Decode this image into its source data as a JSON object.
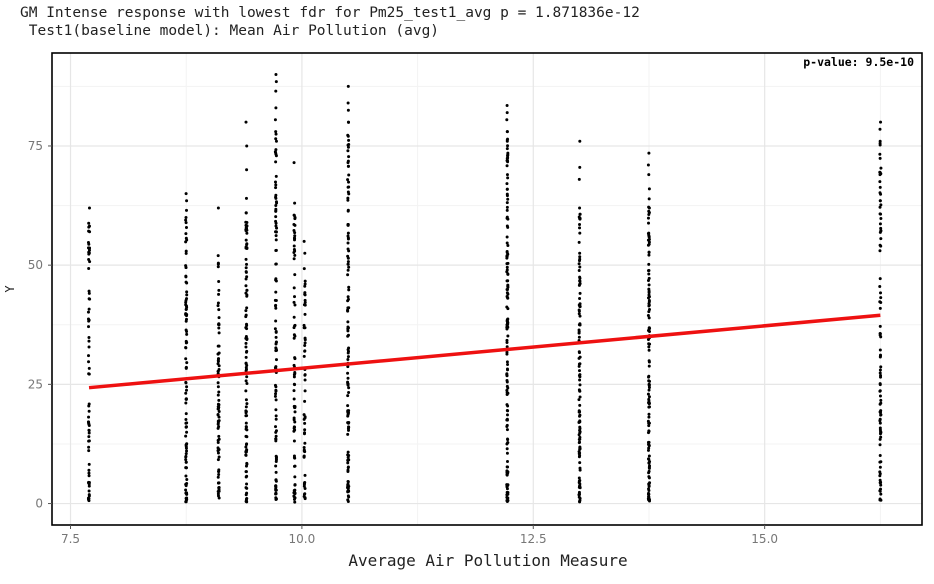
{
  "chart_data": {
    "type": "scatter",
    "title": "GM Intense response with lowest fdr for Pm25_test1_avg p = 1.871836e-12",
    "subtitle": " Test1(baseline model): Mean Air Pollution (avg)",
    "xlabel": "Average Air Pollution Measure",
    "ylabel": "Y",
    "xlim": [
      7.3,
      16.7
    ],
    "ylim": [
      -4.5,
      94.5
    ],
    "x_ticks": [
      7.5,
      10.0,
      12.5,
      15.0
    ],
    "x_tick_labels": [
      "7.5",
      "10.0",
      "12.5",
      "15.0"
    ],
    "y_ticks": [
      0,
      25,
      50,
      75
    ],
    "y_tick_labels": [
      "0",
      "25",
      "50",
      "75"
    ],
    "grid": true,
    "annotation": "p-value: 9.5e-10",
    "annotation_position": "top-right",
    "point_color": "#000000",
    "fit_line": {
      "color": "#ee1111",
      "x": [
        7.7,
        16.25
      ],
      "y": [
        24.3,
        39.5
      ]
    },
    "clusters": [
      {
        "x": 7.7,
        "ymin": 0.5,
        "ymax": 62.0,
        "n": 60,
        "top": [
          58.2,
          58.8,
          62.0
        ]
      },
      {
        "x": 8.75,
        "ymin": 0.3,
        "ymax": 65.0,
        "n": 90,
        "top": [
          60.0,
          61.5,
          63.5,
          65.0
        ]
      },
      {
        "x": 9.1,
        "ymin": 0.5,
        "ymax": 62.0,
        "n": 75,
        "top": [
          52.0,
          62.0
        ]
      },
      {
        "x": 9.4,
        "ymin": 0.3,
        "ymax": 80.0,
        "n": 100,
        "top": [
          64.0,
          70.0,
          75.0,
          80.0
        ]
      },
      {
        "x": 9.72,
        "ymin": 0.5,
        "ymax": 90.0,
        "n": 100,
        "top": [
          78.0,
          80.5,
          83.0,
          86.5,
          88.5,
          90.0
        ]
      },
      {
        "x": 9.92,
        "ymin": 0.3,
        "ymax": 71.5,
        "n": 70,
        "top": [
          60.5,
          63.0,
          71.5
        ]
      },
      {
        "x": 10.03,
        "ymin": 0.5,
        "ymax": 55.0,
        "n": 50,
        "top": [
          52.5,
          55.0
        ]
      },
      {
        "x": 10.5,
        "ymin": 0.3,
        "ymax": 87.5,
        "n": 120,
        "top": [
          80.0,
          82.5,
          84.0,
          87.5
        ]
      },
      {
        "x": 12.22,
        "ymin": 0.3,
        "ymax": 83.5,
        "n": 140,
        "top": [
          78.0,
          80.5,
          82.0,
          83.5
        ]
      },
      {
        "x": 13.0,
        "ymin": 0.3,
        "ymax": 76.0,
        "n": 110,
        "top": [
          62.0,
          68.0,
          70.5,
          76.0
        ]
      },
      {
        "x": 13.75,
        "ymin": 0.3,
        "ymax": 73.5,
        "n": 120,
        "top": [
          66.0,
          69.0,
          71.0,
          73.5
        ]
      },
      {
        "x": 16.25,
        "ymin": 0.5,
        "ymax": 80.0,
        "n": 90,
        "top": [
          76.0,
          78.5,
          80.0
        ]
      }
    ]
  }
}
